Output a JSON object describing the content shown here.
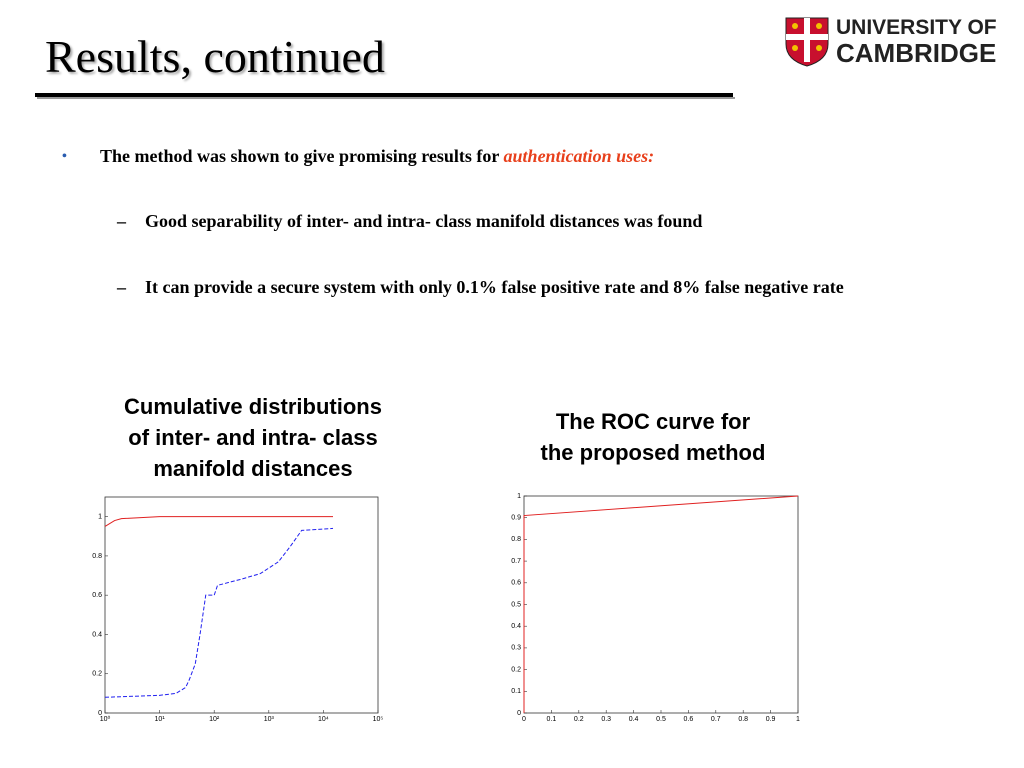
{
  "header": {
    "title": "Results, continued",
    "logo": [
      "UNIVERSITY OF",
      "CAMBRIDGE"
    ]
  },
  "bullets": [
    {
      "text": "The method was shown to give promising results for ",
      "emphasis": "authentication uses:"
    }
  ],
  "sub_bullets": [
    "Good separability of inter- and intra- class manifold distances was found",
    "It can provide a secure system with only 0.1% false positive rate and 8% false negative rate"
  ],
  "chart_data": [
    {
      "type": "line",
      "title": [
        "Cumulative distributions",
        "of inter- and intra- class",
        "manifold distances"
      ],
      "xscale": "log",
      "xlim": [
        1,
        100000
      ],
      "ylim": [
        0,
        1.1
      ],
      "xticks": [
        {
          "value": 1,
          "label": "10⁰"
        },
        {
          "value": 10,
          "label": "10¹"
        },
        {
          "value": 100,
          "label": "10²"
        },
        {
          "value": 1000,
          "label": "10³"
        },
        {
          "value": 10000,
          "label": "10⁴"
        },
        {
          "value": 100000,
          "label": "10⁵"
        }
      ],
      "yticks": [
        0,
        0.2,
        0.4,
        0.6,
        0.8,
        1
      ],
      "series": [
        {
          "color": "#e02020",
          "dash": false,
          "x": [
            1,
            1.5,
            2,
            10,
            100,
            1000,
            10000,
            15000
          ],
          "values": [
            0.95,
            0.98,
            0.99,
            1,
            1,
            1,
            1,
            1
          ]
        },
        {
          "color": "#2020f0",
          "dash": true,
          "x": [
            1,
            10,
            20,
            30,
            35,
            45,
            55,
            70,
            100,
            115,
            300,
            700,
            1500,
            2500,
            4000,
            15000
          ],
          "values": [
            0.08,
            0.09,
            0.1,
            0.13,
            0.17,
            0.25,
            0.4,
            0.6,
            0.6,
            0.65,
            0.68,
            0.71,
            0.77,
            0.85,
            0.93,
            0.94
          ]
        }
      ]
    },
    {
      "type": "line",
      "title": [
        "The ROC curve for",
        "the proposed method"
      ],
      "xscale": "linear",
      "xlim": [
        0,
        1
      ],
      "ylim": [
        0,
        1
      ],
      "xticks": [
        0,
        0.1,
        0.2,
        0.3,
        0.4,
        0.5,
        0.6,
        0.7,
        0.8,
        0.9,
        1
      ],
      "yticks": [
        0,
        0.1,
        0.2,
        0.3,
        0.4,
        0.5,
        0.6,
        0.7,
        0.8,
        0.9,
        1
      ],
      "series": [
        {
          "color": "#e02020",
          "dash": false,
          "x": [
            0,
            0,
            1
          ],
          "values": [
            0,
            0.91,
            1
          ]
        }
      ]
    }
  ]
}
